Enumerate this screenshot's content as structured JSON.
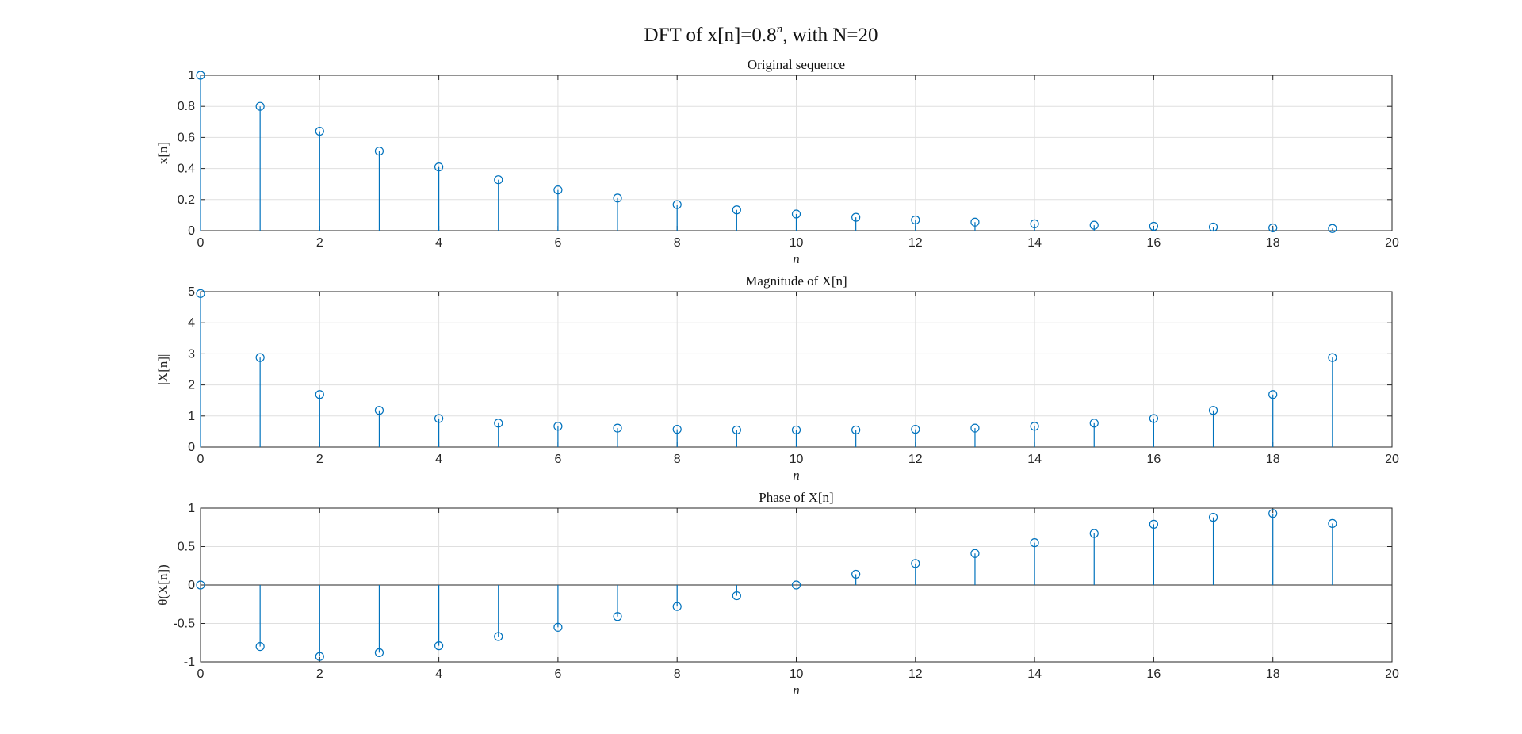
{
  "figure": {
    "title_main": "DFT of x[n]=0.8",
    "title_sup": "n",
    "title_tail": ", with N=20"
  },
  "colors": {
    "stem": "#0072BD",
    "grid": "#dfdfdf",
    "axes": "#262626"
  },
  "chart_data": [
    {
      "type": "stem",
      "title": "Original sequence",
      "xlabel": "n",
      "ylabel": "x[n]",
      "xlim": [
        0,
        20
      ],
      "ylim": [
        0,
        1
      ],
      "xticks": [
        0,
        2,
        4,
        6,
        8,
        10,
        12,
        14,
        16,
        18,
        20
      ],
      "yticks": [
        0,
        0.2,
        0.4,
        0.6,
        0.8,
        1
      ],
      "ytick_labels": [
        "0",
        "0.2",
        "0.4",
        "0.6",
        "0.8",
        "1"
      ],
      "x": [
        0,
        1,
        2,
        3,
        4,
        5,
        6,
        7,
        8,
        9,
        10,
        11,
        12,
        13,
        14,
        15,
        16,
        17,
        18,
        19
      ],
      "values": [
        1,
        0.8,
        0.64,
        0.512,
        0.41,
        0.328,
        0.262,
        0.21,
        0.168,
        0.134,
        0.107,
        0.086,
        0.069,
        0.055,
        0.044,
        0.035,
        0.028,
        0.023,
        0.018,
        0.014
      ],
      "grid": true
    },
    {
      "type": "stem",
      "title": "Magnitude of X[n]",
      "xlabel": "n",
      "ylabel": "|X[n]|",
      "xlim": [
        0,
        20
      ],
      "ylim": [
        0,
        5
      ],
      "xticks": [
        0,
        2,
        4,
        6,
        8,
        10,
        12,
        14,
        16,
        18,
        20
      ],
      "yticks": [
        0,
        1,
        2,
        3,
        4,
        5
      ],
      "ytick_labels": [
        "0",
        "1",
        "2",
        "3",
        "4",
        "5"
      ],
      "x": [
        0,
        1,
        2,
        3,
        4,
        5,
        6,
        7,
        8,
        9,
        10,
        11,
        12,
        13,
        14,
        15,
        16,
        17,
        18,
        19
      ],
      "values": [
        4.94,
        2.88,
        1.69,
        1.18,
        0.92,
        0.77,
        0.67,
        0.61,
        0.57,
        0.55,
        0.55,
        0.55,
        0.57,
        0.61,
        0.67,
        0.77,
        0.92,
        1.18,
        1.69,
        2.88
      ],
      "grid": true
    },
    {
      "type": "stem",
      "title": "Phase of X[n]",
      "xlabel": "n",
      "ylabel": "θ(X[n])",
      "xlim": [
        0,
        20
      ],
      "ylim": [
        -1,
        1
      ],
      "xticks": [
        0,
        2,
        4,
        6,
        8,
        10,
        12,
        14,
        16,
        18,
        20
      ],
      "yticks": [
        -1,
        -0.5,
        0,
        0.5,
        1
      ],
      "ytick_labels": [
        "-1",
        "-0.5",
        "0",
        "0.5",
        "1"
      ],
      "x": [
        0,
        1,
        2,
        3,
        4,
        5,
        6,
        7,
        8,
        9,
        10,
        11,
        12,
        13,
        14,
        15,
        16,
        17,
        18,
        19
      ],
      "values": [
        0,
        -0.8,
        -0.93,
        -0.88,
        -0.79,
        -0.67,
        -0.55,
        -0.41,
        -0.28,
        -0.14,
        0,
        0.14,
        0.28,
        0.41,
        0.55,
        0.67,
        0.79,
        0.88,
        0.93,
        0.8
      ],
      "grid": true
    }
  ]
}
